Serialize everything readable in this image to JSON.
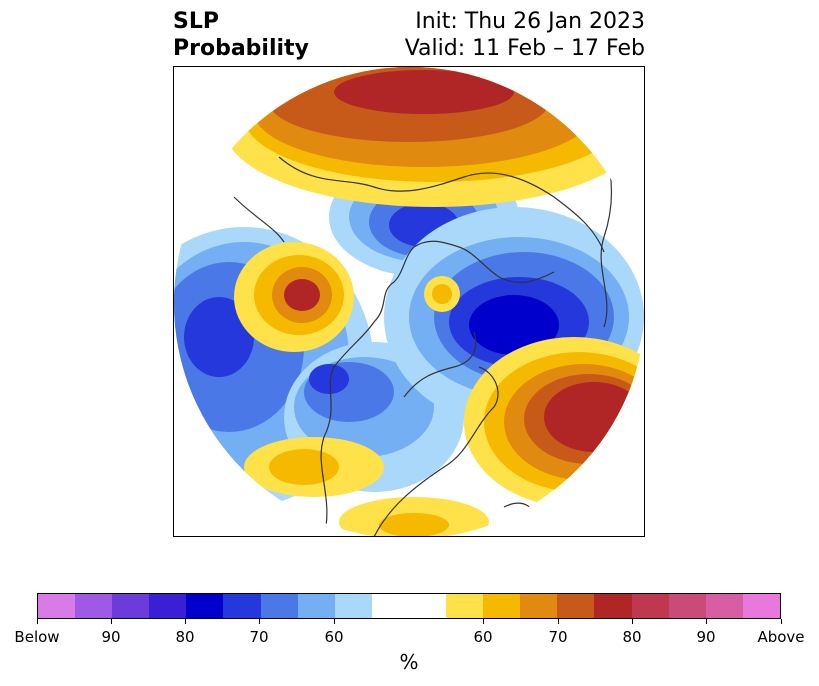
{
  "header": {
    "title_line1": "SLP",
    "title_line2": "Probability",
    "init_text": "Init: Thu 26 Jan 2023",
    "valid_text": "Valid: 11 Feb – 17 Feb"
  },
  "map": {
    "projection": "polar stereographic (north pole)",
    "coastline_color": "#333333",
    "features": [
      "below-normal low over Arctic",
      "below-normal low over North Atlantic / Europe",
      "below-normal low over North Pacific",
      "above-normal high over Eurasia / Siberia",
      "above-normal high over Bering region",
      "above-normal high over eastern Atlantic"
    ]
  },
  "colorbar": {
    "unit_label": "%",
    "colors": [
      "#d97be6",
      "#9e5ae6",
      "#6c3cdb",
      "#3a1fd6",
      "#0000cd",
      "#2438db",
      "#4a78e6",
      "#73aff2",
      "#a9d8fa",
      "#ffffff",
      "#ffffff",
      "#ffe14a",
      "#f5b900",
      "#e08a10",
      "#c75a18",
      "#b02525",
      "#c0384f",
      "#cb4b78",
      "#d85ea4",
      "#e878dc"
    ],
    "tick_labels": [
      "Below",
      "90",
      "80",
      "70",
      "60",
      "60",
      "70",
      "80",
      "90",
      "Above"
    ]
  }
}
